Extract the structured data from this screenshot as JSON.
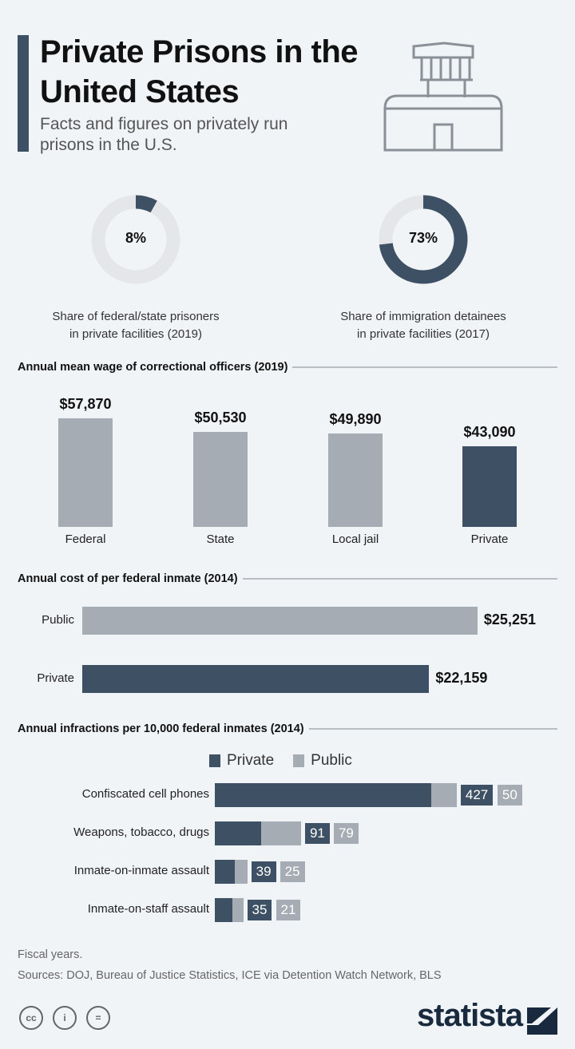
{
  "header": {
    "title": "Private Prisons in the United States",
    "subtitle": "Facts and figures on privately run prisons in the U.S.",
    "icon": "prison-building-icon"
  },
  "colors": {
    "private": "#3e5063",
    "public": "#a5acb3",
    "ring": "#e4e6e9",
    "background": "#f1f4f7"
  },
  "chart_data": [
    {
      "type": "pie",
      "subtype": "donut",
      "value": 8,
      "label": "8%",
      "caption_lines": [
        "Share of federal/state prisoners",
        "in private facilities (2019)"
      ]
    },
    {
      "type": "pie",
      "subtype": "donut",
      "value": 73,
      "label": "73%",
      "caption_lines": [
        "Share of immigration detainees",
        "in private facilities (2017)"
      ]
    },
    {
      "type": "bar",
      "title": "Annual mean wage of correctional officers (2019)",
      "categories": [
        "Federal",
        "State",
        "Local jail",
        "Private"
      ],
      "values": [
        57870,
        50530,
        49890,
        43090
      ],
      "value_labels": [
        "$57,870",
        "$50,530",
        "$49,890",
        "$43,090"
      ],
      "highlight": "Private"
    },
    {
      "type": "bar",
      "orientation": "horizontal",
      "title": "Annual cost of per federal inmate (2014)",
      "categories": [
        "Public",
        "Private"
      ],
      "values": [
        25251,
        22159
      ],
      "value_labels": [
        "$25,251",
        "$22,159"
      ]
    },
    {
      "type": "bar",
      "orientation": "horizontal",
      "stacked": true,
      "title": "Annual infractions per 10,000 federal inmates (2014)",
      "legend": [
        "Private",
        "Public"
      ],
      "categories": [
        "Confiscated cell phones",
        "Weapons, tobacco, drugs",
        "Inmate-on-inmate assault",
        "Inmate-on-staff assault"
      ],
      "series": [
        {
          "name": "Private",
          "values": [
            427,
            91,
            39,
            35
          ]
        },
        {
          "name": "Public",
          "values": [
            50,
            79,
            25,
            21
          ]
        }
      ]
    }
  ],
  "footer": {
    "note": "Fiscal years.",
    "sources": "Sources: DOJ, Bureau of Justice Statistics, ICE via Detention Watch Network, BLS",
    "license_icons": [
      "cc",
      "by",
      "nd"
    ],
    "cc_labels": [
      "cc",
      "i",
      "="
    ],
    "logo": "statista"
  }
}
